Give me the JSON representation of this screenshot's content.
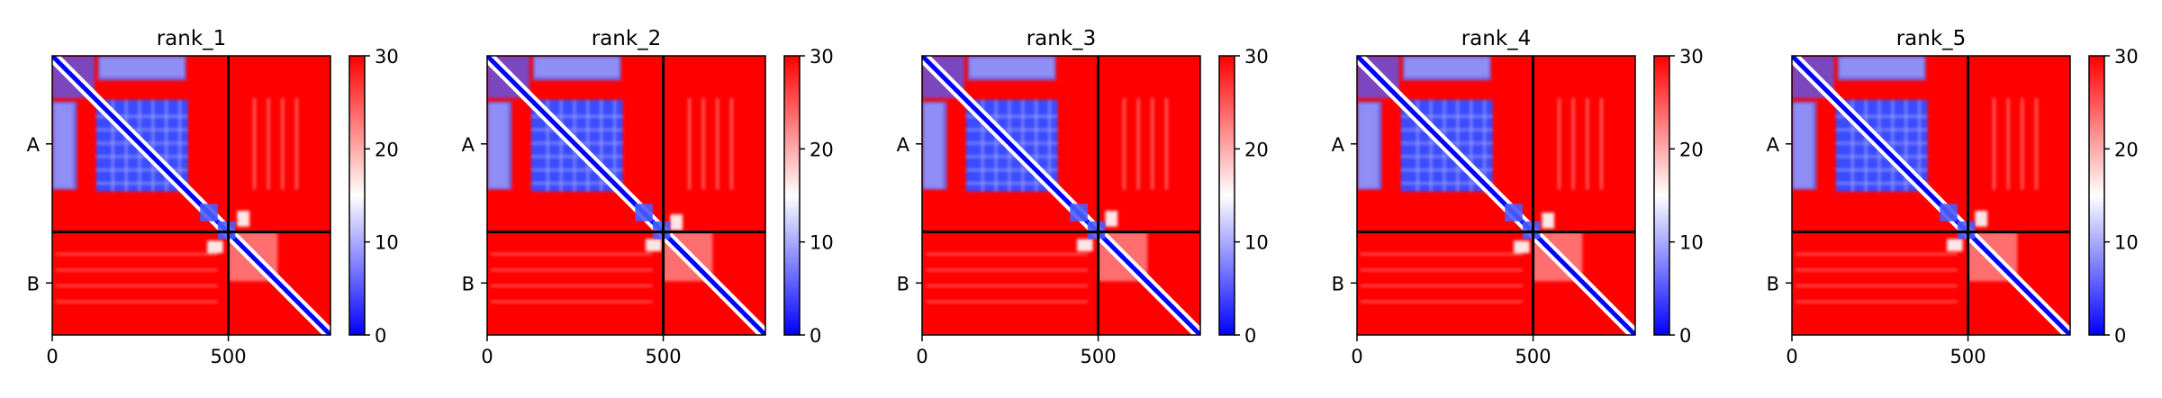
{
  "chart_data": [
    {
      "type": "heatmap",
      "title": "rank_1",
      "x_ticks": [
        0,
        500
      ],
      "y_tick_labels": [
        "A",
        "B"
      ],
      "xlim": [
        0,
        790
      ],
      "chain_boundary": 500,
      "colorbar": {
        "min": 0,
        "max": 30,
        "ticks": [
          0,
          10,
          20,
          30
        ],
        "colors": [
          "#0000ff",
          "#ffffff",
          "#ff0000"
        ]
      },
      "offdiag_contact": {
        "a": 440,
        "b": 550
      }
    },
    {
      "type": "heatmap",
      "title": "rank_2",
      "x_ticks": [
        0,
        500
      ],
      "y_tick_labels": [
        "A",
        "B"
      ],
      "xlim": [
        0,
        790
      ],
      "chain_boundary": 500,
      "colorbar": {
        "min": 0,
        "max": 30,
        "ticks": [
          0,
          10,
          20,
          30
        ],
        "colors": [
          "#0000ff",
          "#ffffff",
          "#ff0000"
        ]
      },
      "offdiag_contact": {
        "a": 450,
        "b": 545
      }
    },
    {
      "type": "heatmap",
      "title": "rank_3",
      "x_ticks": [
        0,
        500
      ],
      "y_tick_labels": [
        "A",
        "B"
      ],
      "xlim": [
        0,
        790
      ],
      "chain_boundary": 500,
      "colorbar": {
        "min": 0,
        "max": 30,
        "ticks": [
          0,
          10,
          20,
          30
        ],
        "colors": [
          "#0000ff",
          "#ffffff",
          "#ff0000"
        ]
      },
      "offdiag_contact": {
        "a": 440,
        "b": 545
      }
    },
    {
      "type": "heatmap",
      "title": "rank_4",
      "x_ticks": [
        0,
        500
      ],
      "y_tick_labels": [
        "A",
        "B"
      ],
      "xlim": [
        0,
        790
      ],
      "chain_boundary": 500,
      "colorbar": {
        "min": 0,
        "max": 30,
        "ticks": [
          0,
          10,
          20,
          30
        ],
        "colors": [
          "#0000ff",
          "#ffffff",
          "#ff0000"
        ]
      },
      "offdiag_contact": {
        "a": 445,
        "b": 550
      }
    },
    {
      "type": "heatmap",
      "title": "rank_5",
      "x_ticks": [
        0,
        500
      ],
      "y_tick_labels": [
        "A",
        "B"
      ],
      "xlim": [
        0,
        790
      ],
      "chain_boundary": 500,
      "colorbar": {
        "min": 0,
        "max": 30,
        "ticks": [
          0,
          10,
          20,
          30
        ],
        "colors": [
          "#0000ff",
          "#ffffff",
          "#ff0000"
        ]
      },
      "offdiag_contact": {
        "a": 440,
        "b": 545
      }
    }
  ]
}
